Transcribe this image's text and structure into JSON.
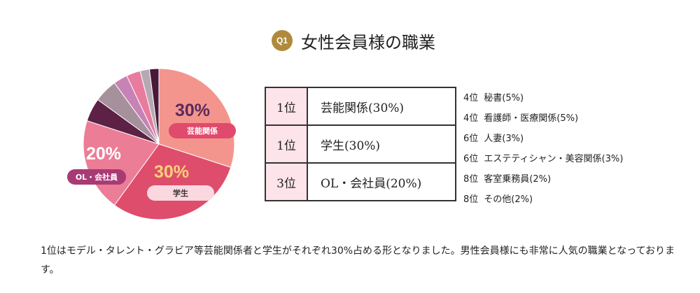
{
  "header": {
    "badge": "Q1",
    "title": "女性会員様の職業"
  },
  "chart_data": {
    "type": "pie",
    "title": "女性会員様の職業",
    "slices": [
      {
        "label": "芸能関係",
        "value": 30,
        "value_label": "30%",
        "color": "#f3958c",
        "label_color": "#e04a6c"
      },
      {
        "label": "学生",
        "value": 30,
        "value_label": "30%",
        "color": "#de4d6c",
        "label_color": "#fbd7df"
      },
      {
        "label": "OL・会社員",
        "value": 20,
        "value_label": "20%",
        "color": "#ec7d96",
        "label_color": "#a83a74"
      },
      {
        "label": "秘書",
        "value": 5,
        "color": "#5d2145"
      },
      {
        "label": "看護師・医療関係",
        "value": 5,
        "color": "#a6909c"
      },
      {
        "label": "人妻",
        "value": 3,
        "color": "#c783b5"
      },
      {
        "label": "エステティシャン・美容関係",
        "value": 3,
        "color": "#e77c9e"
      },
      {
        "label": "客室乗務員",
        "value": 2,
        "color": "#b6a9b3"
      },
      {
        "label": "その他",
        "value": 2,
        "color": "#4a1838"
      }
    ]
  },
  "ranking": [
    {
      "rank": "1位",
      "name": "芸能関係(30%)"
    },
    {
      "rank": "1位",
      "name": "学生(30%)"
    },
    {
      "rank": "3位",
      "name": "OL・会社員(20%)"
    }
  ],
  "others": [
    {
      "rank": "4位",
      "name": "秘書(5%)"
    },
    {
      "rank": "4位",
      "name": "看護師・医療関係(5%)"
    },
    {
      "rank": "6位",
      "name": "人妻(3%)"
    },
    {
      "rank": "6位",
      "name": "エステティシャン・美容関係(3%)"
    },
    {
      "rank": "8位",
      "name": "客室乗務員(2%)"
    },
    {
      "rank": "8位",
      "name": "その他(2%)"
    }
  ],
  "summary": "1位はモデル・タレント・グラビア等芸能関係者と学生がそれぞれ30%占める形となりました。男性会員様にも非常に人気の職業となっております。"
}
